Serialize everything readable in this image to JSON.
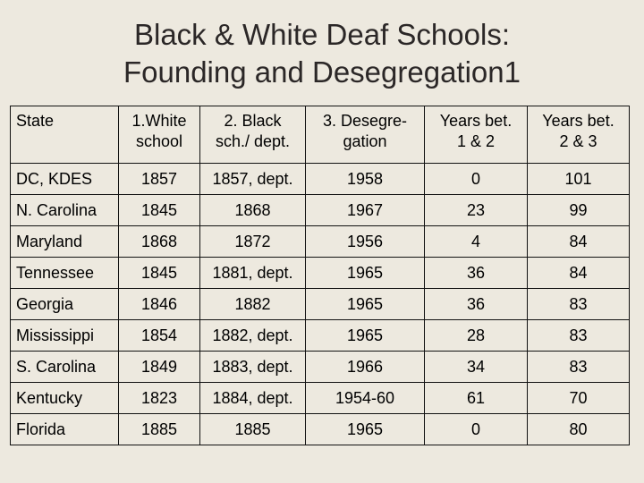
{
  "title": {
    "line1": "Black & White Deaf Schools:",
    "line2": "Founding and Desegregation1"
  },
  "table": {
    "headers": [
      [
        "State"
      ],
      [
        "1.White",
        "school"
      ],
      [
        "2. Black",
        "sch./ dept."
      ],
      [
        "3. Desegre-",
        "gation"
      ],
      [
        "Years bet.",
        "1 & 2"
      ],
      [
        "Years bet.",
        "2 & 3"
      ]
    ],
    "rows": [
      [
        "DC, KDES",
        "1857",
        "1857, dept.",
        "1958",
        "0",
        "101"
      ],
      [
        "N. Carolina",
        "1845",
        "1868",
        "1967",
        "23",
        "99"
      ],
      [
        "Maryland",
        "1868",
        "1872",
        "1956",
        "4",
        "84"
      ],
      [
        "Tennessee",
        "1845",
        "1881, dept.",
        "1965",
        "36",
        "84"
      ],
      [
        "Georgia",
        "1846",
        "1882",
        "1965",
        "36",
        "83"
      ],
      [
        "Mississippi",
        "1854",
        "1882, dept.",
        "1965",
        "28",
        "83"
      ],
      [
        "S. Carolina",
        "1849",
        "1883, dept.",
        "1966",
        "34",
        "83"
      ],
      [
        "Kentucky",
        "1823",
        "1884, dept.",
        "1954-60",
        "61",
        "70"
      ],
      [
        "Florida",
        "1885",
        "1885",
        "1965",
        "0",
        "80"
      ]
    ]
  }
}
